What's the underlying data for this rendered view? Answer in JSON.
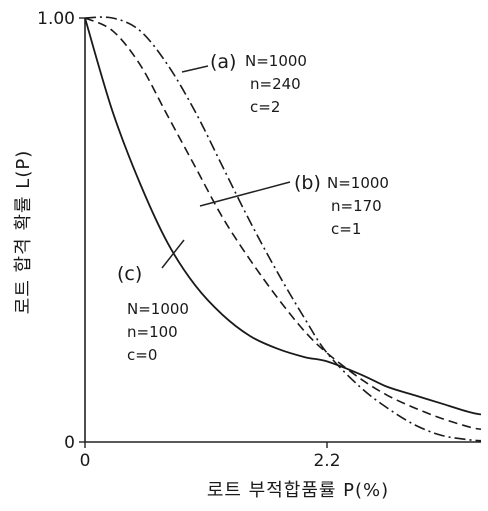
{
  "chart_data": {
    "type": "line",
    "xlabel": "로트 부적합품률 P(%)",
    "ylabel": "로트 합격 확률 L(P)",
    "xlim": [
      0,
      3.6
    ],
    "ylim": [
      0,
      1.0
    ],
    "x_ticks": [
      {
        "value": 0,
        "label": "0"
      },
      {
        "value": 2.2,
        "label": "2.2"
      }
    ],
    "y_ticks": [
      {
        "value": 0,
        "label": "0"
      },
      {
        "value": 1.0,
        "label": "1.00"
      }
    ],
    "grid": false,
    "series": [
      {
        "name": "(a)",
        "params": [
          "N=1000",
          "n=240",
          "c=2"
        ],
        "style": "dashdot",
        "x": [
          0,
          0.25,
          0.5,
          0.75,
          1.0,
          1.25,
          1.5,
          1.75,
          2.0,
          2.2,
          2.5,
          2.75,
          3.0,
          3.25,
          3.5,
          3.6
        ],
        "y": [
          1.0,
          1.0,
          0.97,
          0.89,
          0.78,
          0.65,
          0.52,
          0.4,
          0.29,
          0.21,
          0.13,
          0.08,
          0.04,
          0.015,
          0.005,
          0.003
        ]
      },
      {
        "name": "(b)",
        "params": [
          "N=1000",
          "n=170",
          "c=1"
        ],
        "style": "dashed",
        "x": [
          0,
          0.25,
          0.5,
          0.75,
          1.0,
          1.25,
          1.5,
          1.75,
          2.0,
          2.2,
          2.5,
          2.75,
          3.0,
          3.25,
          3.5,
          3.6
        ],
        "y": [
          1.0,
          0.97,
          0.89,
          0.77,
          0.65,
          0.53,
          0.43,
          0.34,
          0.26,
          0.21,
          0.15,
          0.11,
          0.08,
          0.055,
          0.035,
          0.03
        ]
      },
      {
        "name": "(c)",
        "params": [
          "N=1000",
          "n=100",
          "c=0"
        ],
        "style": "solid",
        "x": [
          0,
          0.25,
          0.5,
          0.75,
          1.0,
          1.25,
          1.5,
          1.75,
          2.0,
          2.2,
          2.5,
          2.75,
          3.0,
          3.25,
          3.5,
          3.6
        ],
        "y": [
          1.0,
          0.78,
          0.61,
          0.47,
          0.37,
          0.3,
          0.25,
          0.22,
          0.2,
          0.19,
          0.16,
          0.13,
          0.11,
          0.09,
          0.07,
          0.065
        ]
      }
    ]
  }
}
